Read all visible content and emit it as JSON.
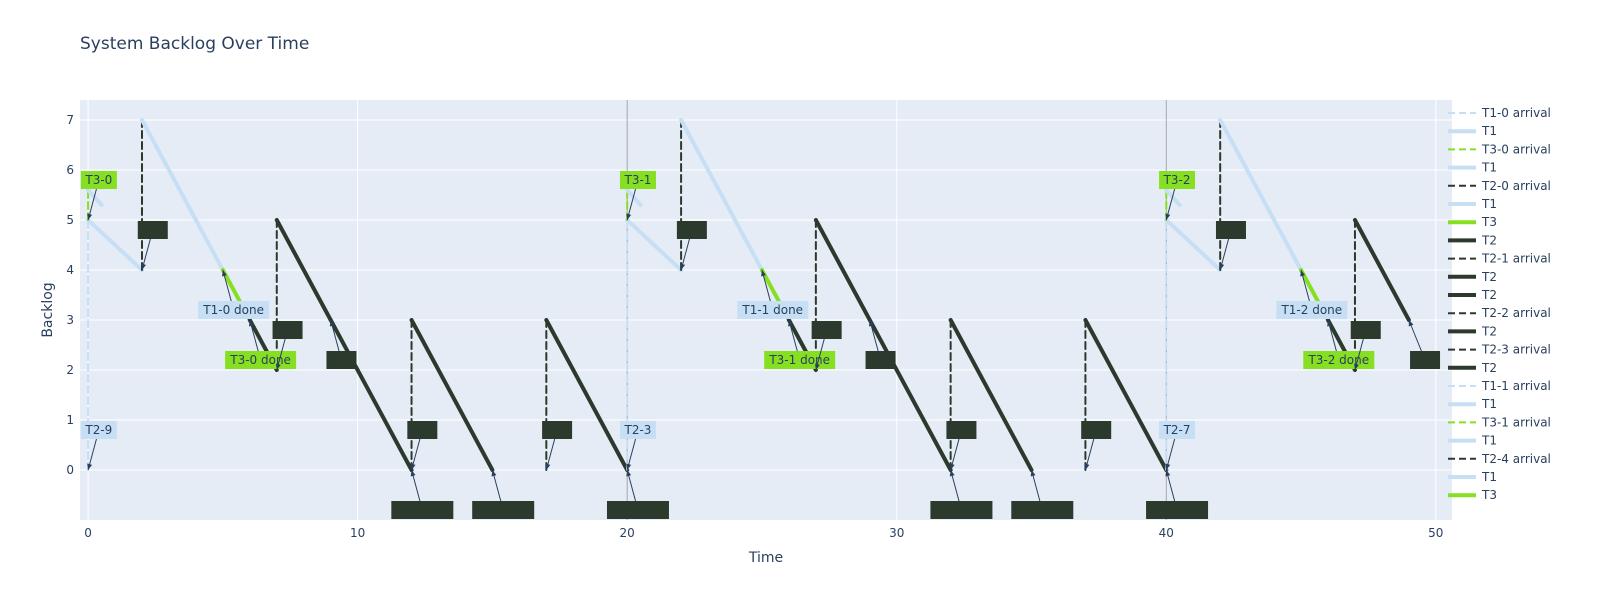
{
  "chart_data": {
    "type": "line",
    "title": "System Backlog Over Time",
    "xlabel": "Time",
    "ylabel": "Backlog",
    "xlim": [
      -0.3,
      50.6
    ],
    "ylim": [
      -1.0,
      7.4
    ],
    "xticks": [
      0,
      10,
      20,
      30,
      40,
      50
    ],
    "yticks": [
      0,
      1,
      2,
      3,
      4,
      5,
      6,
      7
    ],
    "grid": true,
    "legend_position": "right",
    "colors": {
      "T1": "#c6dff5",
      "T2": "#2b3a2d",
      "T3": "#86e021",
      "plot_bg": "#e5ecf6"
    },
    "vlines": [
      20,
      40
    ],
    "series": [
      {
        "name": "T1-0 arrival",
        "group": "T1",
        "dash": true,
        "x": [
          0,
          0
        ],
        "y": [
          0,
          5
        ]
      },
      {
        "name": "T1",
        "group": "T1",
        "dash": false,
        "x": [
          0,
          2
        ],
        "y": [
          5,
          4
        ]
      },
      {
        "name": "T3-0 arrival",
        "group": "T3",
        "dash": true,
        "x": [
          0,
          0
        ],
        "y": [
          5,
          5.6
        ]
      },
      {
        "name": "T1",
        "group": "T1",
        "dash": false,
        "x": [
          0,
          0.5
        ],
        "y": [
          5.6,
          5.3
        ]
      },
      {
        "name": "T2-0 arrival",
        "group": "T2",
        "dash": true,
        "x": [
          2,
          2
        ],
        "y": [
          4,
          7
        ]
      },
      {
        "name": "T1",
        "group": "T1",
        "dash": false,
        "x": [
          2,
          5
        ],
        "y": [
          7,
          4
        ]
      },
      {
        "name": "T3",
        "group": "T3",
        "dash": false,
        "x": [
          5,
          6
        ],
        "y": [
          4,
          3
        ]
      },
      {
        "name": "T2",
        "group": "T2",
        "dash": false,
        "x": [
          6,
          7
        ],
        "y": [
          3,
          2
        ]
      },
      {
        "name": "T2-1 arrival",
        "group": "T2",
        "dash": true,
        "x": [
          7,
          7
        ],
        "y": [
          2,
          5
        ]
      },
      {
        "name": "T2",
        "group": "T2",
        "dash": false,
        "x": [
          7,
          9
        ],
        "y": [
          5,
          3
        ]
      },
      {
        "name": "T2",
        "group": "T2",
        "dash": false,
        "x": [
          9,
          12
        ],
        "y": [
          3,
          0
        ]
      },
      {
        "name": "T2-2 arrival",
        "group": "T2",
        "dash": true,
        "x": [
          12,
          12
        ],
        "y": [
          0,
          3
        ]
      },
      {
        "name": "T2",
        "group": "T2",
        "dash": false,
        "x": [
          12,
          15
        ],
        "y": [
          3,
          0
        ]
      },
      {
        "name": "T2-3 arrival",
        "group": "T2",
        "dash": true,
        "x": [
          17,
          17
        ],
        "y": [
          0,
          3
        ]
      },
      {
        "name": "T2",
        "group": "T2",
        "dash": false,
        "x": [
          17,
          20
        ],
        "y": [
          3,
          0
        ]
      },
      {
        "name": "T1-1 arrival",
        "group": "T1",
        "dash": true,
        "x": [
          20,
          20
        ],
        "y": [
          0,
          5
        ]
      },
      {
        "name": "T1",
        "group": "T1",
        "dash": false,
        "x": [
          20,
          22
        ],
        "y": [
          5,
          4
        ]
      },
      {
        "name": "T3-1 arrival",
        "group": "T3",
        "dash": true,
        "x": [
          20,
          20
        ],
        "y": [
          5,
          5.6
        ]
      },
      {
        "name": "T1",
        "group": "T1",
        "dash": false,
        "x": [
          20,
          20.5
        ],
        "y": [
          5.6,
          5.3
        ]
      },
      {
        "name": "T2-4 arrival",
        "group": "T2",
        "dash": true,
        "x": [
          22,
          22
        ],
        "y": [
          4,
          7
        ]
      },
      {
        "name": "T1",
        "group": "T1",
        "dash": false,
        "x": [
          22,
          25
        ],
        "y": [
          7,
          4
        ]
      },
      {
        "name": "T3",
        "group": "T3",
        "dash": false,
        "x": [
          25,
          26
        ],
        "y": [
          4,
          3
        ]
      },
      {
        "name": "T2",
        "group": "T2",
        "dash": false,
        "x": [
          26,
          27
        ],
        "y": [
          3,
          2
        ],
        "legend": false
      },
      {
        "name": "T2",
        "group": "T2",
        "dash": true,
        "x": [
          27,
          27
        ],
        "y": [
          2,
          5
        ],
        "legend": false
      },
      {
        "name": "T2",
        "group": "T2",
        "dash": false,
        "x": [
          27,
          32
        ],
        "y": [
          5,
          0
        ],
        "legend": false
      },
      {
        "name": "T2",
        "group": "T2",
        "dash": true,
        "x": [
          32,
          32
        ],
        "y": [
          0,
          3
        ],
        "legend": false
      },
      {
        "name": "T2",
        "group": "T2",
        "dash": false,
        "x": [
          32,
          35
        ],
        "y": [
          3,
          0
        ],
        "legend": false
      },
      {
        "name": "T2",
        "group": "T2",
        "dash": true,
        "x": [
          37,
          37
        ],
        "y": [
          0,
          3
        ],
        "legend": false
      },
      {
        "name": "T2",
        "group": "T2",
        "dash": false,
        "x": [
          37,
          40
        ],
        "y": [
          3,
          0
        ],
        "legend": false
      },
      {
        "name": "T1",
        "group": "T1",
        "dash": true,
        "x": [
          40,
          40
        ],
        "y": [
          0,
          5
        ],
        "legend": false
      },
      {
        "name": "T1",
        "group": "T1",
        "dash": false,
        "x": [
          40,
          42
        ],
        "y": [
          5,
          4
        ],
        "legend": false
      },
      {
        "name": "T3",
        "group": "T3",
        "dash": true,
        "x": [
          40,
          40
        ],
        "y": [
          5,
          5.6
        ],
        "legend": false
      },
      {
        "name": "T1",
        "group": "T1",
        "dash": false,
        "x": [
          40,
          40.5
        ],
        "y": [
          5.6,
          5.3
        ],
        "legend": false
      },
      {
        "name": "T2",
        "group": "T2",
        "dash": true,
        "x": [
          42,
          42
        ],
        "y": [
          4,
          7
        ],
        "legend": false
      },
      {
        "name": "T1",
        "group": "T1",
        "dash": false,
        "x": [
          42,
          45
        ],
        "y": [
          7,
          4
        ],
        "legend": false
      },
      {
        "name": "T3",
        "group": "T3",
        "dash": false,
        "x": [
          45,
          46
        ],
        "y": [
          4,
          3
        ],
        "legend": false
      },
      {
        "name": "T2",
        "group": "T2",
        "dash": false,
        "x": [
          46,
          47
        ],
        "y": [
          3,
          2
        ],
        "legend": false
      },
      {
        "name": "T2",
        "group": "T2",
        "dash": true,
        "x": [
          47,
          47
        ],
        "y": [
          2,
          5
        ],
        "legend": false
      },
      {
        "name": "T2",
        "group": "T2",
        "dash": false,
        "x": [
          47,
          49
        ],
        "y": [
          5,
          3
        ],
        "legend": false
      }
    ],
    "annotations": [
      {
        "text": "T3-0",
        "group": "T3",
        "x": 0,
        "y": 5,
        "tx": 0.4,
        "ty": 5.8
      },
      {
        "text": "",
        "group": "T2",
        "x": 2,
        "y": 4,
        "tx": 2.4,
        "ty": 4.8
      },
      {
        "text": "T1-0 done",
        "group": "T1",
        "x": 5,
        "y": 4,
        "tx": 5.4,
        "ty": 3.2
      },
      {
        "text": "T3-0 done",
        "group": "T3",
        "x": 6,
        "y": 3,
        "tx": 6.4,
        "ty": 2.2
      },
      {
        "text": "",
        "group": "T2",
        "x": 7,
        "y": 2,
        "tx": 7.4,
        "ty": 2.8
      },
      {
        "text": "",
        "group": "T2",
        "x": 9,
        "y": 3,
        "tx": 9.4,
        "ty": 2.2
      },
      {
        "text": "T2-9",
        "group": "T1",
        "x": 0,
        "y": 0,
        "tx": 0.4,
        "ty": 0.8
      },
      {
        "text": "",
        "group": "T2",
        "x": 12,
        "y": 0,
        "tx": 12.4,
        "ty": -0.8
      },
      {
        "text": "",
        "group": "T2",
        "x": 12,
        "y": 0,
        "tx": 12.4,
        "ty": 0.8
      },
      {
        "text": "",
        "group": "T2",
        "x": 15,
        "y": 0,
        "tx": 15.4,
        "ty": -0.8
      },
      {
        "text": "",
        "group": "T2",
        "x": 17,
        "y": 0,
        "tx": 17.4,
        "ty": 0.8
      },
      {
        "text": "",
        "group": "T2",
        "x": 20,
        "y": 0,
        "tx": 20.4,
        "ty": -0.8
      },
      {
        "text": "T2-3",
        "group": "T1",
        "x": 20,
        "y": 0,
        "tx": 20.4,
        "ty": 0.8
      },
      {
        "text": "T3-1",
        "group": "T3",
        "x": 20,
        "y": 5,
        "tx": 20.4,
        "ty": 5.8
      },
      {
        "text": "",
        "group": "T2",
        "x": 22,
        "y": 4,
        "tx": 22.4,
        "ty": 4.8
      },
      {
        "text": "T1-1 done",
        "group": "T1",
        "x": 25,
        "y": 4,
        "tx": 25.4,
        "ty": 3.2
      },
      {
        "text": "T3-1 done",
        "group": "T3",
        "x": 26,
        "y": 3,
        "tx": 26.4,
        "ty": 2.2
      },
      {
        "text": "",
        "group": "T2",
        "x": 27,
        "y": 2,
        "tx": 27.4,
        "ty": 2.8
      },
      {
        "text": "",
        "group": "T2",
        "x": 29,
        "y": 3,
        "tx": 29.4,
        "ty": 2.2
      },
      {
        "text": "",
        "group": "T2",
        "x": 32,
        "y": 0,
        "tx": 32.4,
        "ty": -0.8
      },
      {
        "text": "",
        "group": "T2",
        "x": 32,
        "y": 0,
        "tx": 32.4,
        "ty": 0.8
      },
      {
        "text": "",
        "group": "T2",
        "x": 35,
        "y": 0,
        "tx": 35.4,
        "ty": -0.8
      },
      {
        "text": "",
        "group": "T2",
        "x": 37,
        "y": 0,
        "tx": 37.4,
        "ty": 0.8
      },
      {
        "text": "",
        "group": "T2",
        "x": 40,
        "y": 0,
        "tx": 40.4,
        "ty": -0.8
      },
      {
        "text": "T2-7",
        "group": "T1",
        "x": 40,
        "y": 0,
        "tx": 40.4,
        "ty": 0.8
      },
      {
        "text": "T3-2",
        "group": "T3",
        "x": 40,
        "y": 5,
        "tx": 40.4,
        "ty": 5.8
      },
      {
        "text": "",
        "group": "T2",
        "x": 42,
        "y": 4,
        "tx": 42.4,
        "ty": 4.8
      },
      {
        "text": "T1-2 done",
        "group": "T1",
        "x": 45,
        "y": 4,
        "tx": 45.4,
        "ty": 3.2
      },
      {
        "text": "T3-2 done",
        "group": "T3",
        "x": 46,
        "y": 3,
        "tx": 46.4,
        "ty": 2.2
      },
      {
        "text": "",
        "group": "T2",
        "x": 47,
        "y": 2,
        "tx": 47.4,
        "ty": 2.8
      },
      {
        "text": "",
        "group": "T2",
        "x": 49,
        "y": 3,
        "tx": 49.6,
        "ty": 2.2
      }
    ]
  }
}
